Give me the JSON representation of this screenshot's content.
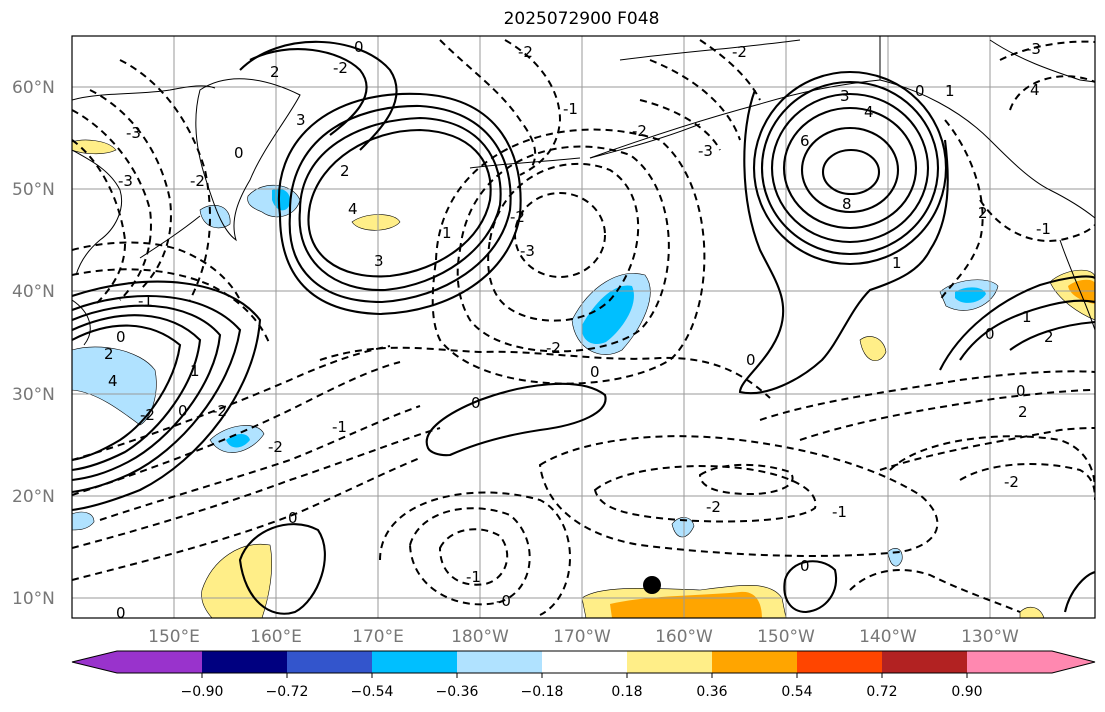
{
  "title": "2025072900 F048",
  "map": {
    "lat_labels": [
      "60°N",
      "50°N",
      "40°N",
      "30°N",
      "20°N",
      "10°N"
    ],
    "lon_labels": [
      "150°E",
      "160°E",
      "170°E",
      "180°W",
      "170°W",
      "160°W",
      "150°W",
      "140°W",
      "130°W"
    ],
    "contour_labels": [
      "0",
      "1",
      "2",
      "3",
      "4",
      "6",
      "8",
      "-1",
      "-2",
      "-3"
    ],
    "colors": {
      "grid": "#9a9a9a",
      "coast": "#000000",
      "contour": "#000000"
    }
  },
  "colorbar": {
    "tick_labels": [
      "−0.90",
      "−0.72",
      "−0.54",
      "−0.36",
      "−0.18",
      "0.18",
      "0.36",
      "0.54",
      "0.72",
      "0.90"
    ],
    "colors": [
      "#9933cc",
      "#000080",
      "#3355cc",
      "#00bfff",
      "#b0e2ff",
      "#ffffff",
      "#ffee88",
      "#ffa500",
      "#ff4500",
      "#b22222",
      "#ff88b0"
    ]
  }
}
